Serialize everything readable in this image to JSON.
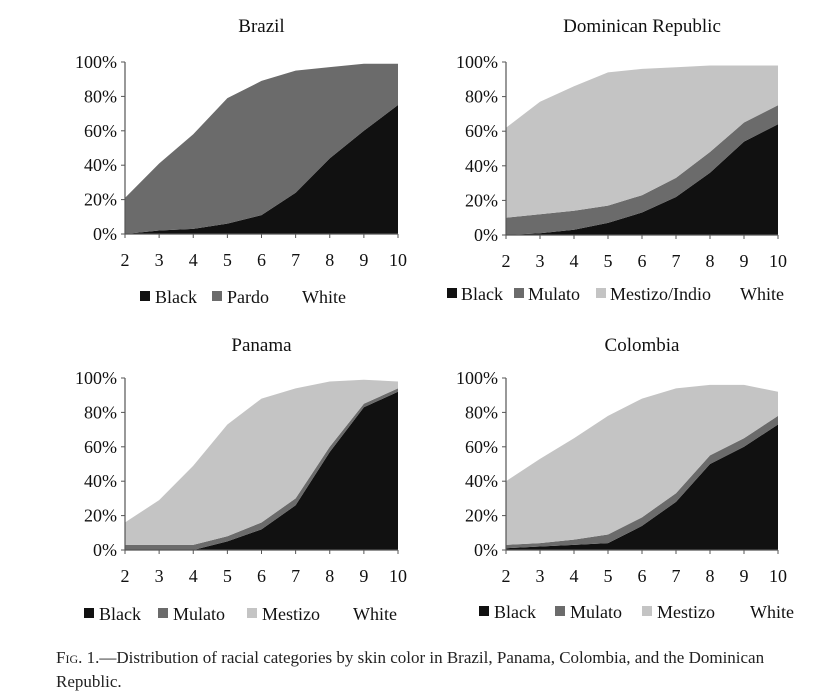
{
  "chart_data": [
    {
      "type": "area",
      "stacked": true,
      "title": "Brazil",
      "x": [
        2,
        3,
        4,
        5,
        6,
        7,
        8,
        9,
        10
      ],
      "ylim": [
        0,
        100
      ],
      "yticks": [
        "0%",
        "20%",
        "40%",
        "60%",
        "80%",
        "100%"
      ],
      "series": [
        {
          "name": "Black",
          "color": "#111111",
          "values": [
            0,
            2,
            3,
            6,
            11,
            24,
            44,
            60,
            75
          ]
        },
        {
          "name": "Pardo",
          "color": "#6b6b6b",
          "values": [
            21,
            39,
            55,
            73,
            78,
            71,
            53,
            39,
            24
          ]
        },
        {
          "name": "White",
          "color": "#ffffff",
          "values": [
            79,
            59,
            42,
            21,
            11,
            5,
            3,
            1,
            1
          ]
        }
      ]
    },
    {
      "type": "area",
      "stacked": true,
      "title": "Dominican Republic",
      "x": [
        2,
        3,
        4,
        5,
        6,
        7,
        8,
        9,
        10
      ],
      "ylim": [
        0,
        100
      ],
      "yticks": [
        "0%",
        "20%",
        "40%",
        "60%",
        "80%",
        "100%"
      ],
      "series": [
        {
          "name": "Black",
          "color": "#111111",
          "values": [
            0,
            1,
            3,
            7,
            13,
            22,
            36,
            54,
            64
          ]
        },
        {
          "name": "Mulato",
          "color": "#6b6b6b",
          "values": [
            10,
            11,
            11,
            10,
            10,
            11,
            12,
            11,
            11
          ]
        },
        {
          "name": "Mestizo/Indio",
          "color": "#c4c4c4",
          "values": [
            52,
            65,
            72,
            77,
            73,
            64,
            50,
            33,
            23
          ]
        },
        {
          "name": "White",
          "color": "#ffffff",
          "values": [
            38,
            23,
            14,
            6,
            4,
            3,
            2,
            2,
            2
          ]
        }
      ]
    },
    {
      "type": "area",
      "stacked": true,
      "title": "Panama",
      "x": [
        2,
        3,
        4,
        5,
        6,
        7,
        8,
        9,
        10
      ],
      "ylim": [
        0,
        100
      ],
      "yticks": [
        "0%",
        "20%",
        "40%",
        "60%",
        "80%",
        "100%"
      ],
      "series": [
        {
          "name": "Black",
          "color": "#111111",
          "values": [
            0,
            0,
            0,
            5,
            12,
            26,
            57,
            83,
            92
          ]
        },
        {
          "name": "Mulato",
          "color": "#6b6b6b",
          "values": [
            3,
            3,
            3,
            3,
            4,
            4,
            3,
            2,
            2
          ]
        },
        {
          "name": "Mestizo",
          "color": "#c4c4c4",
          "values": [
            13,
            26,
            46,
            65,
            72,
            64,
            38,
            14,
            4
          ]
        },
        {
          "name": "White",
          "color": "#ffffff",
          "values": [
            84,
            71,
            51,
            27,
            12,
            6,
            2,
            1,
            2
          ]
        }
      ]
    },
    {
      "type": "area",
      "stacked": true,
      "title": "Colombia",
      "x": [
        2,
        3,
        4,
        5,
        6,
        7,
        8,
        9,
        10
      ],
      "ylim": [
        0,
        100
      ],
      "yticks": [
        "0%",
        "20%",
        "40%",
        "60%",
        "80%",
        "100%"
      ],
      "series": [
        {
          "name": "Black",
          "color": "#111111",
          "values": [
            1,
            2,
            3,
            4,
            14,
            28,
            50,
            60,
            73
          ]
        },
        {
          "name": "Mulato",
          "color": "#6b6b6b",
          "values": [
            2,
            2,
            3,
            5,
            5,
            5,
            5,
            5,
            5
          ]
        },
        {
          "name": "Mestizo",
          "color": "#c4c4c4",
          "values": [
            37,
            49,
            59,
            69,
            69,
            61,
            41,
            31,
            14
          ]
        },
        {
          "name": "White",
          "color": "#ffffff",
          "values": [
            60,
            47,
            35,
            22,
            12,
            6,
            4,
            4,
            8
          ]
        }
      ]
    }
  ],
  "caption": {
    "label": "Fig. 1.",
    "text": "—Distribution of racial categories by skin color in Brazil, Panama, Colombia, and the Dominican Republic."
  }
}
